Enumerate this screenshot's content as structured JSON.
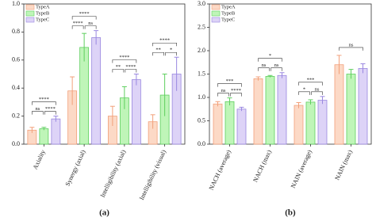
{
  "chart_data": [
    {
      "type": "bar",
      "panel_label": "(a)",
      "legend": "upper left",
      "categories": [
        "Axiality",
        "Synergy (axial)",
        "Intelligibility (axial)",
        "Intelligibility (visual)"
      ],
      "series": [
        {
          "name": "TypeA",
          "color": "#fcd9c6",
          "edgecolor": "#f2a07a",
          "values": [
            0.1,
            0.38,
            0.2,
            0.16
          ],
          "errors": [
            0.02,
            0.1,
            0.07,
            0.05
          ]
        },
        {
          "name": "TypeB",
          "color": "#bff5b8",
          "edgecolor": "#5fcf5f",
          "values": [
            0.11,
            0.69,
            0.33,
            0.35
          ],
          "errors": [
            0.01,
            0.1,
            0.08,
            0.15
          ]
        },
        {
          "name": "TypeC",
          "color": "#ddd3f7",
          "edgecolor": "#9a88e0",
          "values": [
            0.18,
            0.76,
            0.46,
            0.5
          ],
          "errors": [
            0.02,
            0.05,
            0.04,
            0.12
          ]
        }
      ],
      "significance": [
        [
          "****",
          "ns",
          "****"
        ],
        [
          "****",
          "****",
          "ns"
        ],
        [
          "****",
          "**",
          "****"
        ],
        [
          "****",
          "**",
          "*"
        ]
      ],
      "ylim": [
        0,
        1.0
      ],
      "yticks": [
        {
          "value": 0,
          "label": "0.0"
        },
        {
          "value": 0.2,
          "label": "0.2"
        },
        {
          "value": 0.4,
          "label": "0.4"
        },
        {
          "value": 0.6,
          "label": "0.6"
        },
        {
          "value": 0.8,
          "label": "0.8"
        },
        {
          "value": 1.0,
          "label": "1.0"
        }
      ]
    },
    {
      "type": "bar",
      "panel_label": "(b)",
      "legend": "upper left",
      "categories": [
        "NACH (average)",
        "NACH (max)",
        "NAIN (average)",
        "NAIN (max)"
      ],
      "series": [
        {
          "name": "TypeA",
          "color": "#fcd9c6",
          "edgecolor": "#f2a07a",
          "values": [
            0.86,
            1.4,
            0.83,
            1.7
          ],
          "errors": [
            0.05,
            0.04,
            0.06,
            0.2
          ]
        },
        {
          "name": "TypeB",
          "color": "#bff5b8",
          "edgecolor": "#5fcf5f",
          "values": [
            0.91,
            1.45,
            0.9,
            1.5
          ],
          "errors": [
            0.08,
            0.02,
            0.05,
            0.1
          ]
        },
        {
          "name": "TypeC",
          "color": "#ddd3f7",
          "edgecolor": "#9a88e0",
          "values": [
            0.75,
            1.47,
            0.94,
            1.62
          ],
          "errors": [
            0.04,
            0.06,
            0.08,
            0.1
          ]
        }
      ],
      "significance": [
        [
          "***",
          "ns",
          "****"
        ],
        [
          "*",
          "ns",
          "ns"
        ],
        [
          "***",
          "*",
          "ns"
        ],
        [
          "ns"
        ]
      ],
      "ylim": [
        0,
        3.0
      ],
      "yticks": [
        {
          "value": 0,
          "label": "0.0"
        },
        {
          "value": 0.5,
          "label": "0.5"
        },
        {
          "value": 1.0,
          "label": "1.0"
        },
        {
          "value": 1.5,
          "label": "1.5"
        },
        {
          "value": 2.0,
          "label": "2.0"
        },
        {
          "value": 2.5,
          "label": "2.5"
        },
        {
          "value": 3.0,
          "label": "3.0"
        }
      ]
    }
  ]
}
